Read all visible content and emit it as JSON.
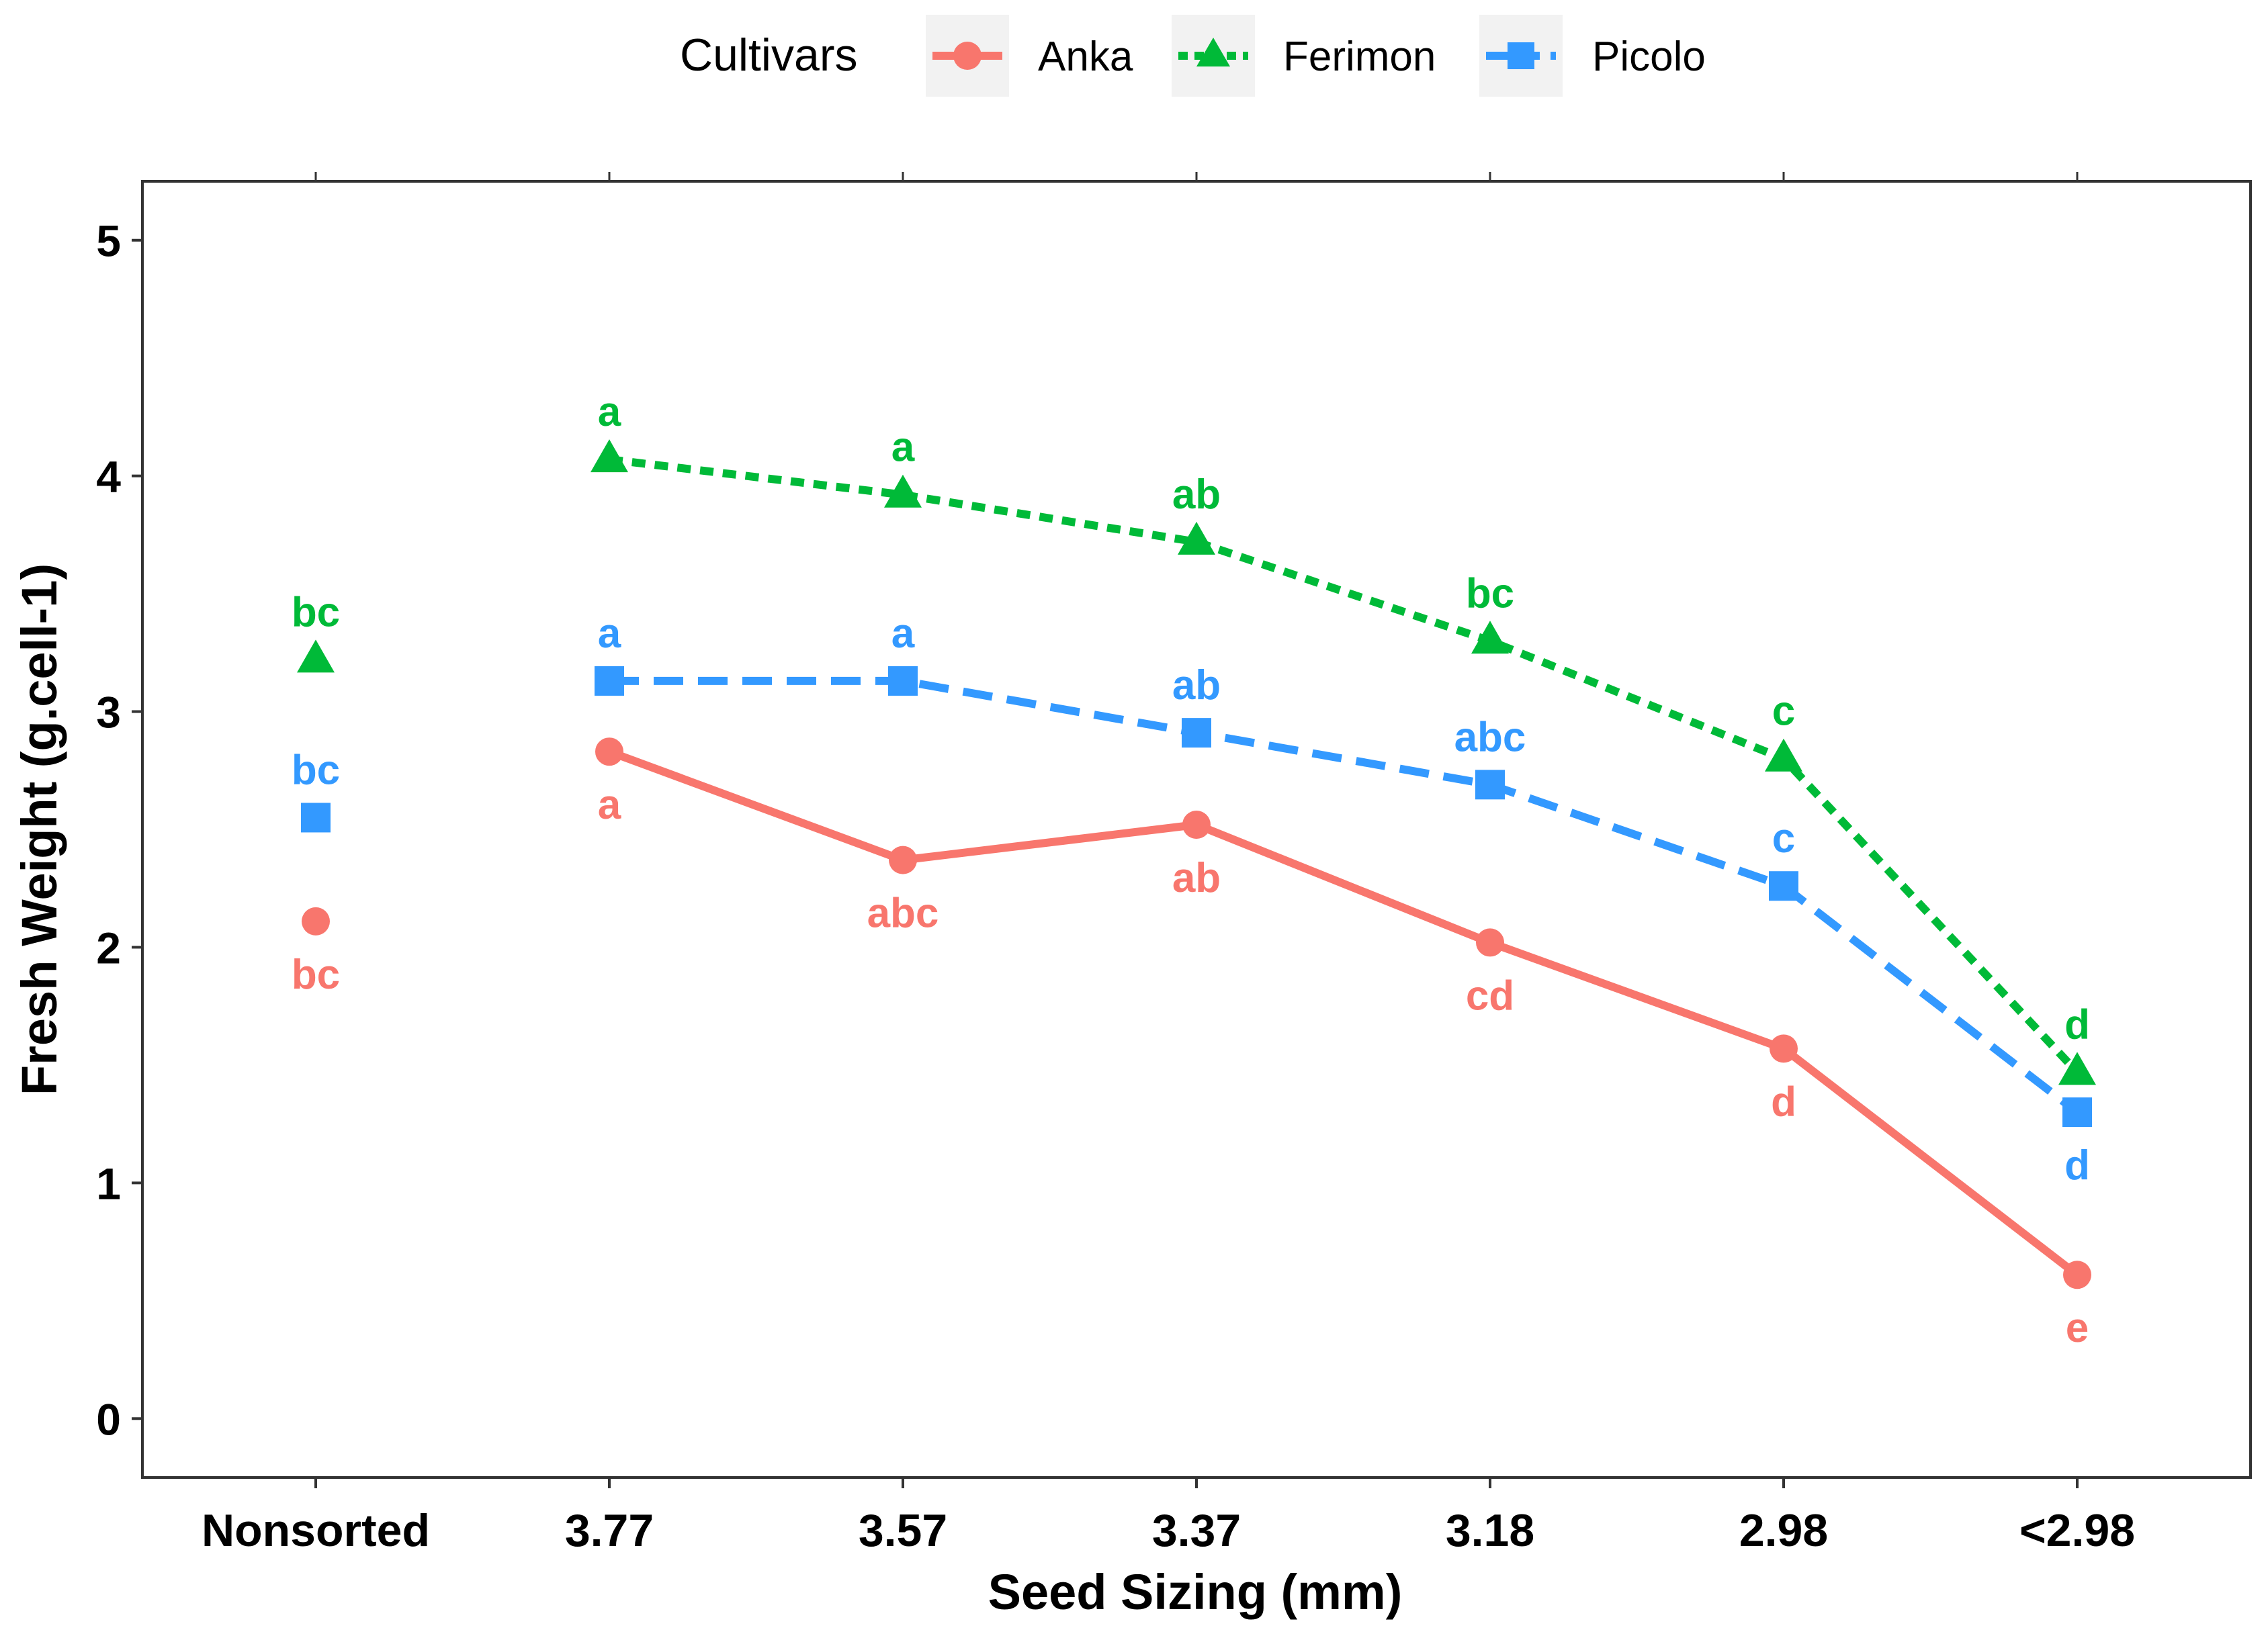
{
  "chart_data": {
    "type": "line",
    "title": "",
    "xlabel": "Seed Sizing (mm)",
    "ylabel": "Fresh Weight (g.cell-1)",
    "categories": [
      "Nonsorted",
      "3.77",
      "3.57",
      "3.37",
      "3.18",
      "2.98",
      "<2.98"
    ],
    "ylim": [
      -0.25,
      5.25
    ],
    "yticks": [
      0,
      1,
      2,
      3,
      4,
      5
    ],
    "grid": false,
    "legend": {
      "title": "Cultivars",
      "position": "top"
    },
    "series": [
      {
        "name": "Anka",
        "color": "#F8766D",
        "marker": "circle",
        "linestyle": "solid",
        "values": [
          2.11,
          2.83,
          2.37,
          2.52,
          2.02,
          1.57,
          0.61
        ],
        "letters": [
          "bc",
          "a",
          "abc",
          "ab",
          "cd",
          "d",
          "e"
        ],
        "letter_pos": [
          "below",
          "below",
          "below",
          "below",
          "below",
          "below",
          "below"
        ],
        "connect_from": 1
      },
      {
        "name": "Ferimon",
        "color": "#00BA38",
        "marker": "triangle",
        "linestyle": "dotted",
        "values": [
          3.22,
          4.07,
          3.92,
          3.72,
          3.3,
          2.8,
          1.47
        ],
        "letters": [
          "bc",
          "a",
          "a",
          "ab",
          "bc",
          "c",
          "d"
        ],
        "letter_pos": [
          "above",
          "above",
          "above",
          "above",
          "above",
          "above",
          "above"
        ],
        "connect_from": 1
      },
      {
        "name": "Picolo",
        "color": "#3399FF",
        "marker": "square",
        "linestyle": "dashed",
        "values": [
          2.55,
          3.13,
          3.13,
          2.91,
          2.69,
          2.26,
          1.3
        ],
        "letters": [
          "bc",
          "a",
          "a",
          "ab",
          "abc",
          "c",
          "d"
        ],
        "letter_pos": [
          "above",
          "above",
          "above",
          "above",
          "above",
          "above",
          "below"
        ],
        "connect_from": 1
      }
    ]
  }
}
